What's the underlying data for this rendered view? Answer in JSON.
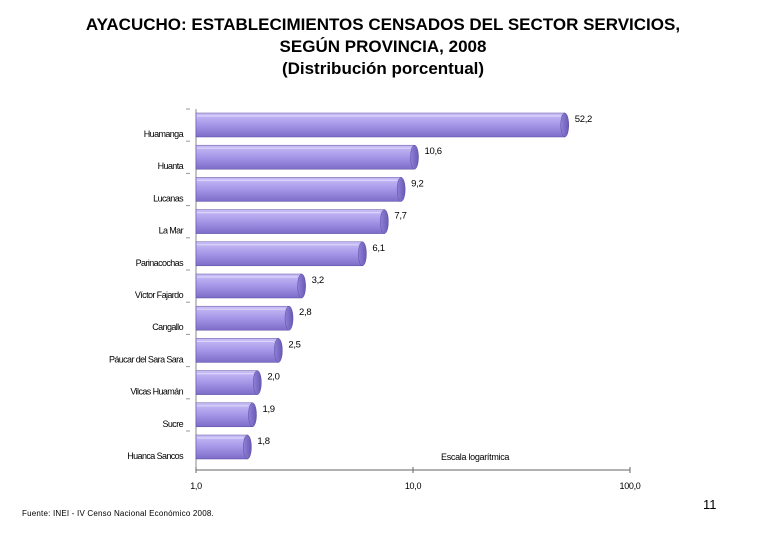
{
  "title": {
    "line1": "AYACUCHO: ESTABLECIMIENTOS CENSADOS DEL SECTOR SERVICIOS,",
    "line2": "SEGÚN PROVINCIA, 2008",
    "line3": "(Distribución porcentual)"
  },
  "chart_data": {
    "type": "bar",
    "orientation": "horizontal",
    "scale": "log",
    "categories": [
      "Huamanga",
      "Huanta",
      "Lucanas",
      "La Mar",
      "Parinacochas",
      "Víctor Fajardo",
      "Cangallo",
      "Páucar del Sara Sara",
      "Vilcas Huamán",
      "Sucre",
      "Huanca Sancos"
    ],
    "values": [
      52.2,
      10.6,
      9.2,
      7.7,
      6.1,
      3.2,
      2.8,
      2.5,
      2.0,
      1.9,
      1.8
    ],
    "value_labels": [
      "52,2",
      "10,6",
      "9,2",
      "7,7",
      "6,1",
      "3,2",
      "2,8",
      "2,5",
      "2,0",
      "1,9",
      "1,8"
    ],
    "xlim": [
      1,
      100
    ],
    "x_ticks": [
      1,
      10,
      100
    ],
    "x_tick_labels": [
      "1,0",
      "10,0",
      "100,0"
    ],
    "annotation": "Escala logarítmica",
    "bar_color": "#a99aea",
    "legend": "none"
  },
  "footer": {
    "source": "Fuente: INEI - IV Censo Nacional Económico 2008.",
    "page_number": "11"
  }
}
